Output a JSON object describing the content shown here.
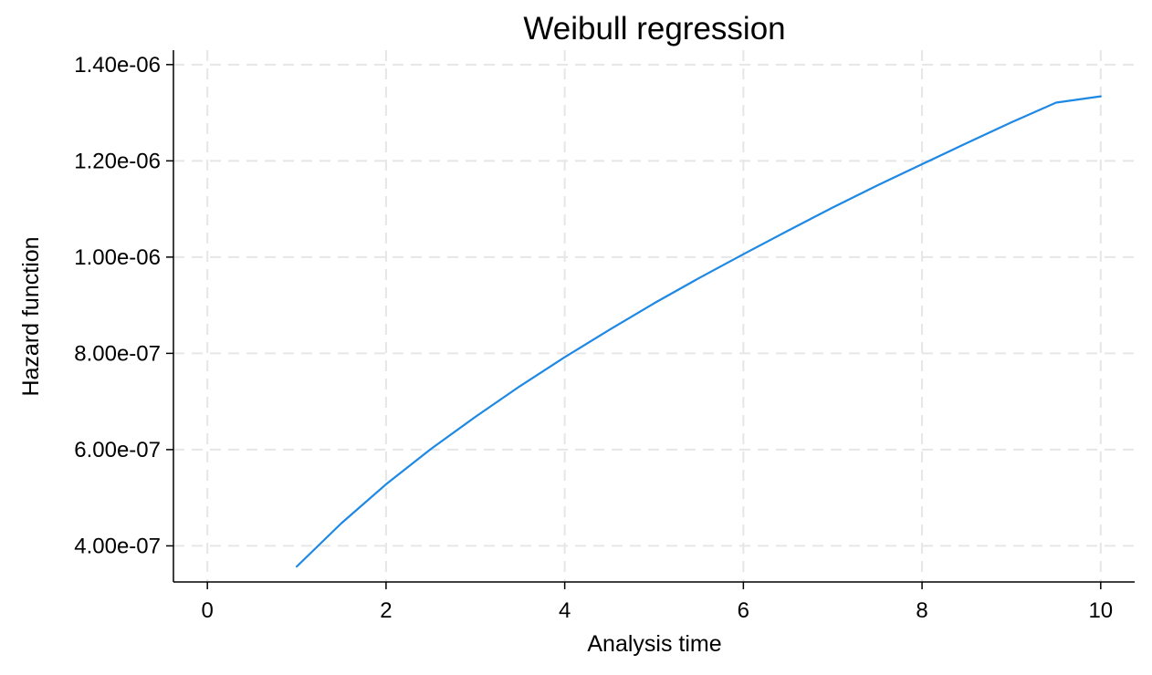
{
  "chart_data": {
    "type": "line",
    "title": "Weibull regression",
    "xlabel": "Analysis time",
    "ylabel": "Hazard function",
    "xlim": [
      -0.38,
      10.38
    ],
    "ylim": [
      3.25e-07,
      1.43e-06
    ],
    "x_ticks": [
      0,
      2,
      4,
      6,
      8,
      10
    ],
    "x_tick_labels": [
      "0",
      "2",
      "4",
      "6",
      "8",
      "10"
    ],
    "y_ticks": [
      4e-07,
      6e-07,
      8e-07,
      1e-06,
      1.2e-06,
      1.4e-06
    ],
    "y_tick_labels": [
      "4.00e-07",
      "6.00e-07",
      "8.00e-07",
      "1.00e-06",
      "1.20e-06",
      "1.40e-06"
    ],
    "grid": true,
    "series": [
      {
        "name": "Hazard function",
        "color": "#1e88e5",
        "x": [
          1,
          1.5,
          2,
          2.5,
          3,
          3.5,
          4,
          4.5,
          5,
          5.5,
          6,
          6.5,
          7,
          7.5,
          8,
          8.5,
          9,
          9.5,
          10
        ],
        "y": [
          3.57e-07,
          4.47e-07,
          5.28e-07,
          6.01e-07,
          6.68e-07,
          7.32e-07,
          7.92e-07,
          8.49e-07,
          9.04e-07,
          9.56e-07,
          1.006e-06,
          1.055e-06,
          1.103e-06,
          1.149e-06,
          1.193e-06,
          1.237e-06,
          1.28e-06,
          1.321e-06,
          1.334e-06
        ]
      }
    ]
  }
}
